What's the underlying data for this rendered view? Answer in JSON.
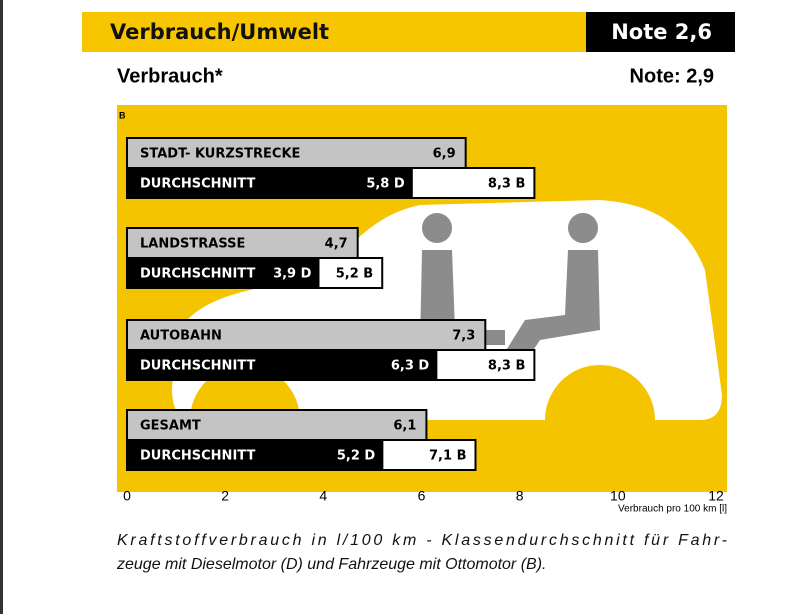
{
  "header": {
    "title": "Verbrauch/Umwelt",
    "grade": "Note 2,6"
  },
  "chart_data": {
    "type": "bar",
    "orientation": "horizontal",
    "title": "Verbrauch*",
    "grade": "Note: 2,9",
    "corner_label": "B",
    "categories": [
      "STADT- KURZSTRECKE",
      "LANDSTRASSE",
      "AUTOBAHN",
      "GESAMT"
    ],
    "average_label": "DURCHSCHNITT",
    "series": [
      {
        "color": "#c4c4c4",
        "values": [
          6.9,
          4.7,
          7.3,
          6.1
        ],
        "value_labels": [
          "6,9",
          "4,7",
          "7,3",
          "6,1"
        ]
      },
      {
        "color": "#000000",
        "values": [
          5.8,
          3.9,
          6.3,
          5.2
        ],
        "value_labels": [
          "5,8 D",
          "3,9 D",
          "6,3 D",
          "5,2 D"
        ]
      },
      {
        "color": "#ffffff",
        "values": [
          8.3,
          5.2,
          8.3,
          7.1
        ],
        "value_labels": [
          "8,3 B",
          "5,2 B",
          "8,3 B",
          "7,1 B"
        ]
      }
    ],
    "xlim": [
      0,
      12
    ],
    "xticks": [
      0,
      2,
      4,
      6,
      8,
      10,
      12
    ],
    "xlabel": "Verbrauch pro 100 km [l]",
    "caption": [
      "Kraftstoffverbrauch in l/100 km - Klassendurchschnitt für Fahr-",
      "zeuge mit Dieselmotor (D) und Fahrzeuge mit Ottomotor (B)."
    ]
  }
}
